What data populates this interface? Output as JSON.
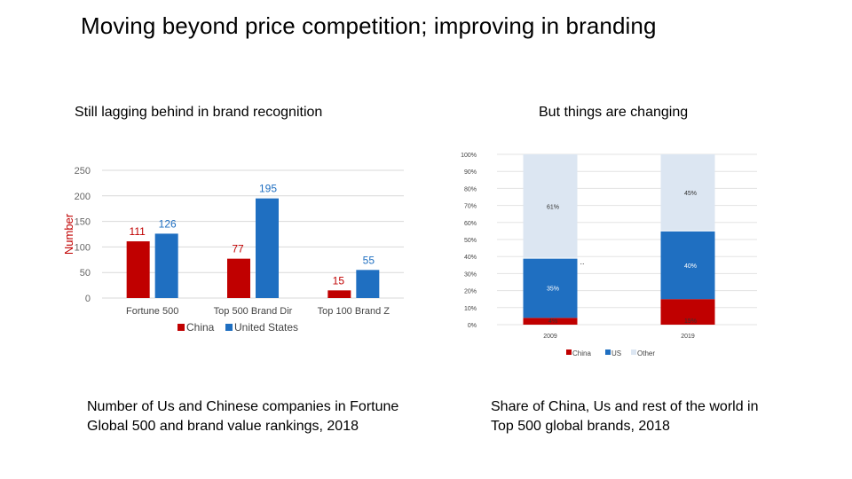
{
  "slide": {
    "title": "Moving beyond price competition; improving in branding",
    "left_heading": "Still lagging behind in brand recognition",
    "right_heading": "But things are changing",
    "left_caption": "Number of Us and Chinese companies in Fortune Global 500 and brand value rankings, 2018",
    "right_caption": "Share of China, Us and rest of the world in Top 500 global brands, 2018"
  },
  "chart_data": [
    {
      "type": "bar",
      "title": "",
      "ylabel": "Number",
      "xlabel": "",
      "ylim": [
        0,
        250
      ],
      "y_ticks": [
        "0",
        "50",
        "100",
        "150",
        "200",
        "250"
      ],
      "categories": [
        "Fortune 500",
        "Top 500 Brand Dir",
        "Top 100 Brand Z"
      ],
      "series": [
        {
          "name": "China",
          "color": "#c00000",
          "values": [
            111,
            77,
            15
          ]
        },
        {
          "name": "United States",
          "color": "#1f6fc1",
          "values": [
            126,
            195,
            55
          ]
        }
      ],
      "grid": true,
      "legend": "bottom"
    },
    {
      "type": "bar",
      "stacked": true,
      "percent": true,
      "title": "",
      "categories": [
        "2009",
        "2019"
      ],
      "y_ticks": [
        "0%",
        "10%",
        "20%",
        "30%",
        "40%",
        "50%",
        "60%",
        "70%",
        "80%",
        "90%",
        "100%"
      ],
      "series": [
        {
          "name": "China",
          "color": "#c00000",
          "values": [
            4,
            15
          ],
          "labels": [
            "4%",
            "15%"
          ]
        },
        {
          "name": "US",
          "color": "#1f6fc1",
          "values": [
            35,
            40
          ],
          "labels": [
            "35%",
            "40%"
          ]
        },
        {
          "name": "Other",
          "color": "#dce6f2",
          "values": [
            61,
            45
          ],
          "labels": [
            "61%",
            "45%"
          ]
        }
      ],
      "annotation": "..",
      "grid": true,
      "legend": "bottom"
    }
  ]
}
